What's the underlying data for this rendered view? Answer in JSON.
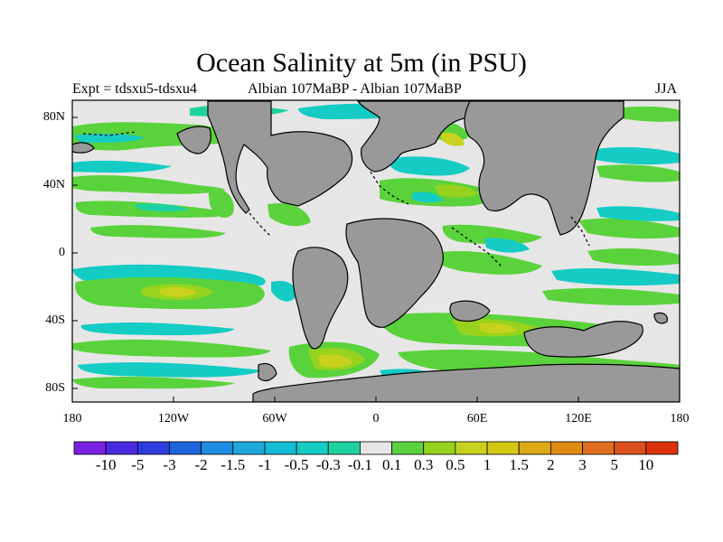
{
  "title": "Ocean Salinity at 5m (in PSU)",
  "subtitle_left": "Expt = tdsxu5-tdsxu4",
  "subtitle_center": "Albian   107MaBP - Albian   107MaBP",
  "subtitle_right": "JJA",
  "lat_labels": [
    "80N",
    "40N",
    "0",
    "40S",
    "80S"
  ],
  "lon_labels": [
    "180",
    "120W",
    "60W",
    "0",
    "60E",
    "120E",
    "180"
  ],
  "colorbar": {
    "labels": [
      "-10",
      "-5",
      "-3",
      "-2",
      "-1.5",
      "-1",
      "-0.5",
      "-0.3",
      "-0.1",
      "0.1",
      "0.3",
      "0.5",
      "1",
      "1.5",
      "2",
      "3",
      "5",
      "10"
    ],
    "colors": [
      "#7a1ee0",
      "#4a2ae0",
      "#2e3cdc",
      "#1e64dc",
      "#1e8ce0",
      "#1ea8dc",
      "#14bcd4",
      "#14ccc4",
      "#1ed2a0",
      "#e6e6e6",
      "#5ad23c",
      "#96d21e",
      "#c8d21e",
      "#d2c814",
      "#dcaa14",
      "#e08c14",
      "#e06e1e",
      "#dc501e",
      "#dc320a"
    ]
  },
  "colors": {
    "land": "#999999",
    "ocean_neutral": "#e6e6e6",
    "fresher_small": "#1ed2a0",
    "fresher_medium": "#14ccc4",
    "saltier_small": "#5ad23c",
    "saltier_medium": "#96d21e",
    "saltier_large": "#c8d21e"
  }
}
